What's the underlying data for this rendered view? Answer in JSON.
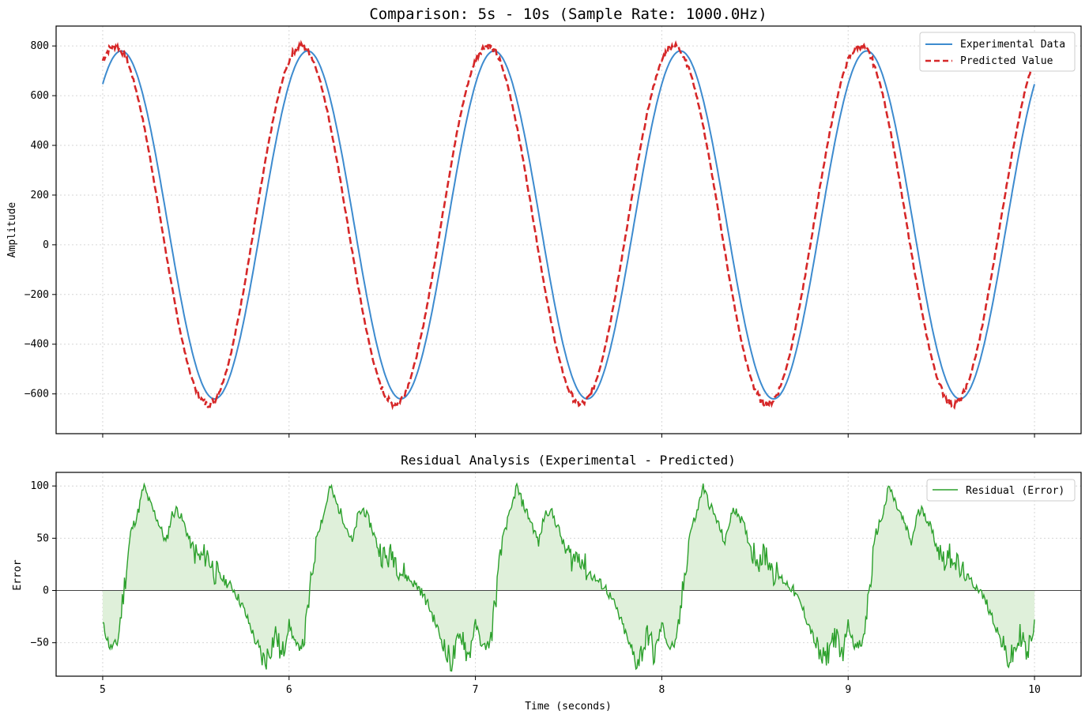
{
  "chart_data": [
    {
      "type": "line",
      "title": "Comparison: 5s - 10s (Sample Rate: 1000.0Hz)",
      "xlabel": "",
      "ylabel": "Amplitude",
      "xlim": [
        4.75,
        10.25
      ],
      "ylim": [
        -760,
        880
      ],
      "yticks": [
        800,
        600,
        400,
        200,
        0,
        -200,
        -400,
        -600
      ],
      "ytick_labels": [
        "800",
        "600",
        "400",
        "200",
        "0",
        "−200",
        "−400",
        "−600"
      ],
      "xticks": [
        5,
        6,
        7,
        8,
        9,
        10
      ],
      "grid": true,
      "legend_position": "top-right",
      "colors": {
        "experimental": "#3d8bcf",
        "predicted": "#d62728"
      },
      "model": {
        "experimental": {
          "offset": 80,
          "amplitude": 700,
          "frequency_hz": 1,
          "peak_time": 5.1
        },
        "predicted": {
          "offset": 80,
          "amplitude": 720,
          "frequency_hz": 1,
          "peak_time": 5.065
        }
      },
      "series": [
        {
          "name": "Experimental Data",
          "style": "solid"
        },
        {
          "name": "Predicted Value",
          "style": "dashed"
        }
      ]
    },
    {
      "type": "area",
      "title": "Residual Analysis (Experimental - Predicted)",
      "xlabel": "Time (seconds)",
      "ylabel": "Error",
      "xlim": [
        4.75,
        10.25
      ],
      "ylim": [
        -82,
        113
      ],
      "yticks": [
        100,
        50,
        0,
        -50
      ],
      "ytick_labels": [
        "100",
        "50",
        "0",
        "−50"
      ],
      "xticks": [
        5,
        6,
        7,
        8,
        9,
        10
      ],
      "xtick_labels": [
        "5",
        "6",
        "7",
        "8",
        "9",
        "10"
      ],
      "grid": true,
      "legend_position": "top-right",
      "colors": {
        "residual": "#2ca02c",
        "fill": "#dff0da",
        "zero_line": "#444444"
      },
      "series": [
        {
          "name": "Residual (Error)",
          "period_profile": {
            "x_phase": [
              0,
              0.04,
              0.08,
              0.11,
              0.15,
              0.19,
              0.22,
              0.25,
              0.3,
              0.34,
              0.37,
              0.4,
              0.44,
              0.48,
              0.52,
              0.56,
              0.6,
              0.65,
              0.7,
              0.75,
              0.8,
              0.84,
              0.87,
              0.9,
              0.93,
              0.96,
              1.0
            ],
            "y": [
              -32,
              -55,
              -50,
              -5,
              55,
              75,
              100,
              85,
              65,
              45,
              72,
              78,
              62,
              40,
              30,
              35,
              18,
              10,
              2,
              -15,
              -38,
              -60,
              -68,
              -55,
              -40,
              -65,
              -32
            ]
          }
        }
      ]
    }
  ]
}
